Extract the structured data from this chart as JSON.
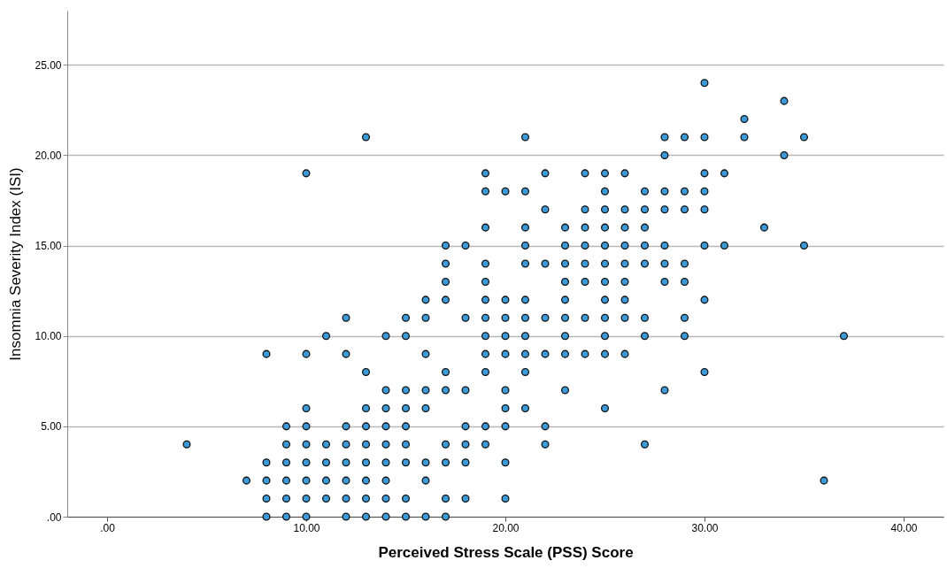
{
  "chart_data": {
    "type": "scatter",
    "xlabel": "Perceived Stress Scale (PSS) Score",
    "ylabel": "Insomnia Severity Index (ISI)",
    "xlim": [
      -2,
      42
    ],
    "ylim": [
      0,
      28
    ],
    "xticks": [
      {
        "value": 0,
        "label": ".00"
      },
      {
        "value": 10,
        "label": "10.00"
      },
      {
        "value": 20,
        "label": "20.00"
      },
      {
        "value": 30,
        "label": "30.00"
      },
      {
        "value": 40,
        "label": "40.00"
      }
    ],
    "yticks": [
      {
        "value": 0,
        "label": ".00"
      },
      {
        "value": 5,
        "label": "5.00"
      },
      {
        "value": 10,
        "label": "10.00"
      },
      {
        "value": 15,
        "label": "15.00"
      },
      {
        "value": 20,
        "label": "20.00"
      },
      {
        "value": 25,
        "label": "25.00"
      }
    ],
    "grid": "y",
    "marker": "circle",
    "legend": false,
    "series": [
      {
        "color": "#3c9ad8",
        "x": [
          4,
          7,
          8,
          8,
          8,
          8,
          8,
          9,
          9,
          9,
          9,
          9,
          9,
          10,
          10,
          10,
          10,
          10,
          10,
          10,
          10,
          10,
          11,
          11,
          11,
          11,
          11,
          12,
          12,
          12,
          12,
          12,
          12,
          12,
          12,
          13,
          13,
          13,
          13,
          13,
          13,
          13,
          13,
          13,
          14,
          14,
          14,
          14,
          14,
          14,
          14,
          14,
          14,
          15,
          15,
          15,
          15,
          15,
          15,
          15,
          15,
          15,
          16,
          16,
          16,
          16,
          16,
          16,
          16,
          16,
          17,
          17,
          17,
          17,
          17,
          17,
          17,
          17,
          17,
          17,
          18,
          18,
          18,
          18,
          18,
          18,
          18,
          19,
          19,
          19,
          19,
          19,
          19,
          19,
          19,
          19,
          19,
          19,
          19,
          20,
          20,
          20,
          20,
          20,
          20,
          20,
          20,
          20,
          20,
          21,
          21,
          21,
          21,
          21,
          21,
          21,
          21,
          21,
          21,
          21,
          22,
          22,
          22,
          22,
          22,
          22,
          22,
          23,
          23,
          23,
          23,
          23,
          23,
          23,
          23,
          23,
          24,
          24,
          24,
          24,
          24,
          24,
          24,
          24,
          25,
          25,
          25,
          25,
          25,
          25,
          25,
          25,
          25,
          25,
          25,
          25,
          26,
          26,
          26,
          26,
          26,
          26,
          26,
          26,
          26,
          27,
          27,
          27,
          27,
          27,
          27,
          27,
          27,
          28,
          28,
          28,
          28,
          28,
          28,
          28,
          28,
          29,
          29,
          29,
          29,
          29,
          29,
          29,
          30,
          30,
          30,
          30,
          30,
          30,
          30,
          30,
          31,
          31,
          32,
          32,
          33,
          34,
          34,
          35,
          35,
          36,
          37
        ],
        "values": [
          4,
          2,
          0,
          1,
          2,
          3,
          9,
          0,
          1,
          2,
          3,
          4,
          5,
          0,
          1,
          2,
          3,
          4,
          5,
          6,
          9,
          19,
          1,
          2,
          3,
          4,
          10,
          0,
          1,
          2,
          3,
          4,
          5,
          9,
          11,
          0,
          1,
          2,
          3,
          4,
          5,
          6,
          8,
          21,
          0,
          1,
          2,
          3,
          4,
          5,
          6,
          7,
          10,
          0,
          1,
          3,
          4,
          5,
          6,
          7,
          10,
          11,
          0,
          2,
          3,
          6,
          7,
          9,
          11,
          12,
          0,
          1,
          3,
          4,
          7,
          8,
          12,
          13,
          14,
          15,
          1,
          3,
          4,
          5,
          7,
          11,
          15,
          4,
          5,
          8,
          9,
          10,
          11,
          12,
          13,
          14,
          16,
          18,
          19,
          1,
          3,
          5,
          6,
          7,
          9,
          10,
          11,
          12,
          18,
          6,
          8,
          9,
          10,
          11,
          12,
          14,
          15,
          16,
          18,
          21,
          4,
          5,
          9,
          11,
          14,
          17,
          19,
          7,
          9,
          10,
          11,
          12,
          13,
          14,
          15,
          16,
          9,
          11,
          13,
          14,
          15,
          16,
          17,
          19,
          6,
          9,
          10,
          11,
          12,
          13,
          14,
          15,
          16,
          17,
          18,
          19,
          9,
          11,
          12,
          13,
          14,
          15,
          16,
          17,
          19,
          4,
          10,
          11,
          14,
          15,
          16,
          17,
          18,
          7,
          13,
          14,
          15,
          17,
          18,
          20,
          21,
          10,
          11,
          13,
          14,
          17,
          18,
          21,
          8,
          12,
          15,
          17,
          18,
          19,
          21,
          24,
          15,
          19,
          21,
          22,
          16,
          20,
          23,
          15,
          21,
          2,
          10
        ]
      }
    ]
  }
}
